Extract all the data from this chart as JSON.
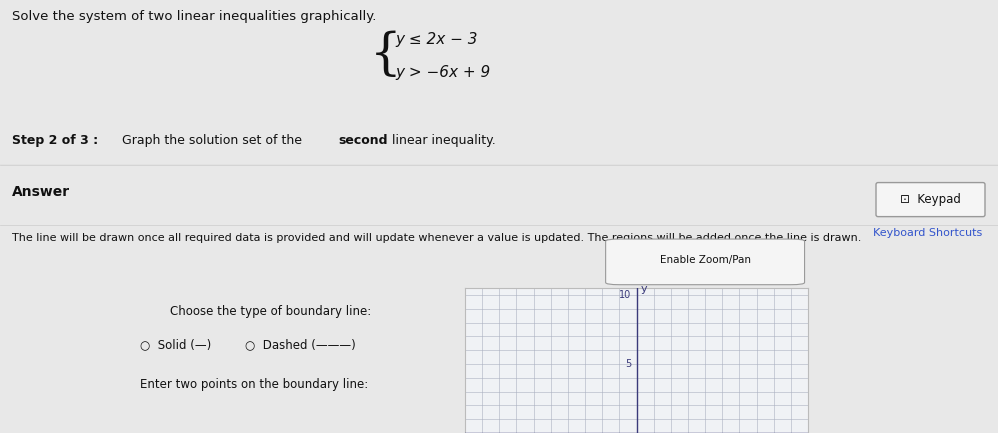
{
  "title_text": "Solve the system of two linear inequalities graphically.",
  "system_line1": "y ≤ 2x − 3",
  "system_line2": "y > −6x + 9",
  "step_bold": "Step 2 of 3 :",
  "step_rest": " Graph the solution set of the ",
  "step_second": "second",
  "step_end": " linear inequality.",
  "answer_label": "Answer",
  "keypad_btn": "⊡  Keypad",
  "keyboard_shortcuts": "Keyboard Shortcuts",
  "instructions_text": "The line will be drawn once all required data is provided and will update whenever a value is updated. The regions will be added once the line is drawn.",
  "zoom_pan_btn": "Enable Zoom/Pan",
  "boundary_label": "Choose the type of boundary line:",
  "solid_label": "Solid (—)",
  "dashed_label": "Dashed (———)",
  "points_label": "Enter two points on the boundary line:",
  "bg_color": "#e8e8e8",
  "top_panel_color": "#f0f0f0",
  "bottom_panel_color": "#f8f8f8",
  "grid_bg": "#f0f2f5",
  "zoom_box_bg": "#f0f2f5",
  "axis_color": "#3a3a7a",
  "grid_color": "#aab0c0",
  "border_color": "#bbbbbb",
  "text_color": "#111111",
  "link_color": "#3355cc",
  "separator_color": "#cccccc",
  "fig_width": 9.98,
  "fig_height": 4.33
}
